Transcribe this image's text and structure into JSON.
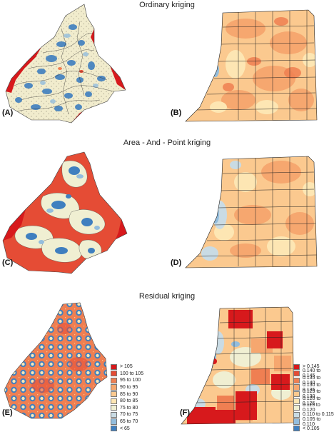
{
  "sections": [
    {
      "title": "Ordinary kriging"
    },
    {
      "title": "Area - And - Point kriging"
    },
    {
      "title": "Residual kriging"
    }
  ],
  "panels": [
    {
      "label": "(A)"
    },
    {
      "label": "(B)"
    },
    {
      "label": "(C)"
    },
    {
      "label": "(D)"
    },
    {
      "label": "(E)"
    },
    {
      "label": "(F)"
    }
  ],
  "legend_left": {
    "items": [
      {
        "label": "> 105",
        "color": "#d7191c"
      },
      {
        "label": "100 to 105",
        "color": "#e54c35"
      },
      {
        "label": "95 to 100",
        "color": "#ef7f52"
      },
      {
        "label": "90 to 95",
        "color": "#f6a76f"
      },
      {
        "label": "85 to 90",
        "color": "#fbc98f"
      },
      {
        "label": "80 to 85",
        "color": "#fde6b3"
      },
      {
        "label": "75 to 80",
        "color": "#f0efd2"
      },
      {
        "label": "70 to 75",
        "color": "#c9dbe4"
      },
      {
        "label": "65 to 70",
        "color": "#93bddd"
      },
      {
        "label": "< 65",
        "color": "#3f7fbf"
      }
    ]
  },
  "legend_right": {
    "items": [
      {
        "label": "> 0.145",
        "color": "#d7191c"
      },
      {
        "label": "0.140 to 0.145",
        "color": "#e54c35"
      },
      {
        "label": "0.135 to 0.140",
        "color": "#ef7f52"
      },
      {
        "label": "0.130 to 0.135",
        "color": "#f6a76f"
      },
      {
        "label": "0.125 to 0.130",
        "color": "#fbc98f"
      },
      {
        "label": "0.120 to 0.125",
        "color": "#fde6b3"
      },
      {
        "label": "0.115 to 0.120",
        "color": "#f0efd2"
      },
      {
        "label": "0.110 to 0.115",
        "color": "#c9dbe4"
      },
      {
        "label": "0.105 to 0.110",
        "color": "#93bddd"
      },
      {
        "label": "< 0.105",
        "color": "#3f7fbf"
      }
    ]
  }
}
